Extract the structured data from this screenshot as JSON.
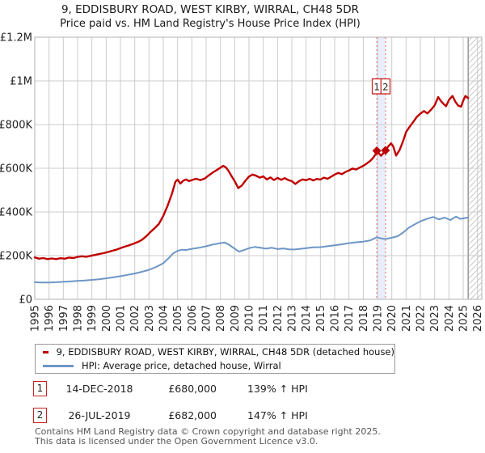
{
  "title": {
    "line1": "9, EDDISBURY ROAD, WEST KIRBY, WIRRAL, CH48 5DR",
    "line2": "Price paid vs. HM Land Registry's House Price Index (HPI)"
  },
  "colors": {
    "property_line": "#c00000",
    "hpi_line": "#6d96c6",
    "grid": "#cccccc",
    "plot_border": "#b0b0b0",
    "band": "#e8eefb",
    "event_line": "#f07878",
    "marker": "#c00000",
    "hatch": "#c8c8c8",
    "hatch_edge": "#999999",
    "annotation_border": "#cc2222",
    "text": "#222222",
    "footer_text": "#555555"
  },
  "chart_data": {
    "type": "line",
    "title": "9, EDDISBURY ROAD, WEST KIRBY, WIRRAL, CH48 5DR",
    "subtitle": "Price paid vs. HM Land Registry's House Price Index (HPI)",
    "grid": true,
    "legend_position": "bottom",
    "x_axis": {
      "min": 1995,
      "max": 2026.3,
      "tick_years": [
        1995,
        1996,
        1997,
        1998,
        1999,
        2000,
        2001,
        2002,
        2003,
        2004,
        2005,
        2006,
        2007,
        2008,
        2009,
        2010,
        2011,
        2012,
        2013,
        2014,
        2015,
        2016,
        2017,
        2018,
        2019,
        2020,
        2021,
        2022,
        2023,
        2024,
        2025,
        2026
      ]
    },
    "y_axis": {
      "min": 0,
      "max": 1200,
      "unit": "thousands of £",
      "ticks": [
        {
          "value": 0,
          "label": "£0"
        },
        {
          "value": 200,
          "label": "£200K"
        },
        {
          "value": 400,
          "label": "£400K"
        },
        {
          "value": 600,
          "label": "£600K"
        },
        {
          "value": 800,
          "label": "£800K"
        },
        {
          "value": 1000,
          "label": "£1M"
        },
        {
          "value": 1200,
          "label": "£1.2M"
        }
      ]
    },
    "future_hatch_start_year": 2025.35,
    "series": [
      {
        "name": "9, EDDISBURY ROAD, WEST KIRBY, WIRRAL, CH48 5DR (detached house)",
        "color_key": "property_line",
        "width": 2.4,
        "points": [
          [
            1995.0,
            192
          ],
          [
            1995.3,
            186
          ],
          [
            1995.6,
            189
          ],
          [
            1995.9,
            184
          ],
          [
            1996.2,
            187
          ],
          [
            1996.5,
            184
          ],
          [
            1996.8,
            188
          ],
          [
            1997.1,
            186
          ],
          [
            1997.4,
            191
          ],
          [
            1997.7,
            189
          ],
          [
            1998.0,
            194
          ],
          [
            1998.3,
            197
          ],
          [
            1998.6,
            195
          ],
          [
            1998.9,
            199
          ],
          [
            1999.2,
            203
          ],
          [
            1999.5,
            207
          ],
          [
            1999.8,
            211
          ],
          [
            2000.1,
            216
          ],
          [
            2000.4,
            222
          ],
          [
            2000.7,
            227
          ],
          [
            2001.0,
            234
          ],
          [
            2001.3,
            241
          ],
          [
            2001.6,
            247
          ],
          [
            2001.9,
            254
          ],
          [
            2002.2,
            262
          ],
          [
            2002.5,
            272
          ],
          [
            2002.8,
            288
          ],
          [
            2003.1,
            308
          ],
          [
            2003.4,
            326
          ],
          [
            2003.7,
            346
          ],
          [
            2004.0,
            382
          ],
          [
            2004.3,
            428
          ],
          [
            2004.6,
            482
          ],
          [
            2004.85,
            538
          ],
          [
            2005.0,
            548
          ],
          [
            2005.2,
            530
          ],
          [
            2005.4,
            543
          ],
          [
            2005.6,
            549
          ],
          [
            2005.8,
            541
          ],
          [
            2006.0,
            546
          ],
          [
            2006.3,
            552
          ],
          [
            2006.6,
            546
          ],
          [
            2006.9,
            553
          ],
          [
            2007.2,
            568
          ],
          [
            2007.5,
            582
          ],
          [
            2007.8,
            594
          ],
          [
            2008.0,
            603
          ],
          [
            2008.2,
            611
          ],
          [
            2008.4,
            603
          ],
          [
            2008.6,
            585
          ],
          [
            2008.8,
            562
          ],
          [
            2009.0,
            541
          ],
          [
            2009.25,
            509
          ],
          [
            2009.5,
            521
          ],
          [
            2009.75,
            543
          ],
          [
            2010.0,
            562
          ],
          [
            2010.25,
            571
          ],
          [
            2010.5,
            566
          ],
          [
            2010.75,
            557
          ],
          [
            2011.0,
            563
          ],
          [
            2011.25,
            549
          ],
          [
            2011.5,
            558
          ],
          [
            2011.75,
            546
          ],
          [
            2012.0,
            556
          ],
          [
            2012.25,
            547
          ],
          [
            2012.5,
            555
          ],
          [
            2012.75,
            546
          ],
          [
            2013.0,
            541
          ],
          [
            2013.25,
            528
          ],
          [
            2013.5,
            541
          ],
          [
            2013.75,
            549
          ],
          [
            2014.0,
            545
          ],
          [
            2014.25,
            552
          ],
          [
            2014.5,
            544
          ],
          [
            2014.75,
            551
          ],
          [
            2015.0,
            548
          ],
          [
            2015.25,
            557
          ],
          [
            2015.5,
            552
          ],
          [
            2015.75,
            561
          ],
          [
            2016.0,
            571
          ],
          [
            2016.25,
            579
          ],
          [
            2016.5,
            573
          ],
          [
            2016.75,
            583
          ],
          [
            2017.0,
            590
          ],
          [
            2017.25,
            599
          ],
          [
            2017.5,
            594
          ],
          [
            2017.75,
            603
          ],
          [
            2018.0,
            611
          ],
          [
            2018.25,
            622
          ],
          [
            2018.5,
            634
          ],
          [
            2018.7,
            648
          ],
          [
            2018.85,
            663
          ],
          [
            2018.95,
            680
          ],
          [
            2019.1,
            668
          ],
          [
            2019.25,
            657
          ],
          [
            2019.4,
            668
          ],
          [
            2019.56,
            682
          ],
          [
            2019.75,
            700
          ],
          [
            2019.95,
            714
          ],
          [
            2020.1,
            700
          ],
          [
            2020.3,
            658
          ],
          [
            2020.55,
            684
          ],
          [
            2020.8,
            726
          ],
          [
            2021.0,
            766
          ],
          [
            2021.25,
            790
          ],
          [
            2021.5,
            812
          ],
          [
            2021.75,
            835
          ],
          [
            2022.0,
            850
          ],
          [
            2022.25,
            862
          ],
          [
            2022.5,
            851
          ],
          [
            2022.75,
            868
          ],
          [
            2023.0,
            888
          ],
          [
            2023.25,
            926
          ],
          [
            2023.45,
            907
          ],
          [
            2023.65,
            893
          ],
          [
            2023.8,
            884
          ],
          [
            2024.0,
            913
          ],
          [
            2024.25,
            931
          ],
          [
            2024.45,
            905
          ],
          [
            2024.65,
            887
          ],
          [
            2024.85,
            882
          ],
          [
            2025.0,
            909
          ],
          [
            2025.15,
            931
          ],
          [
            2025.35,
            921
          ]
        ]
      },
      {
        "name": "HPI: Average price, detached house, Wirral",
        "color_key": "hpi_line",
        "width": 2,
        "points": [
          [
            1995.0,
            78
          ],
          [
            1995.5,
            77
          ],
          [
            1996.0,
            77
          ],
          [
            1996.5,
            78
          ],
          [
            1997.0,
            80
          ],
          [
            1997.5,
            82
          ],
          [
            1998.0,
            84
          ],
          [
            1998.5,
            86
          ],
          [
            1999.0,
            89
          ],
          [
            1999.5,
            92
          ],
          [
            2000.0,
            96
          ],
          [
            2000.5,
            101
          ],
          [
            2001.0,
            106
          ],
          [
            2001.5,
            112
          ],
          [
            2002.0,
            118
          ],
          [
            2002.5,
            126
          ],
          [
            2003.0,
            135
          ],
          [
            2003.5,
            148
          ],
          [
            2004.0,
            165
          ],
          [
            2004.4,
            190
          ],
          [
            2004.7,
            211
          ],
          [
            2005.0,
            222
          ],
          [
            2005.3,
            227
          ],
          [
            2005.6,
            226
          ],
          [
            2006.0,
            231
          ],
          [
            2006.5,
            236
          ],
          [
            2007.0,
            243
          ],
          [
            2007.5,
            251
          ],
          [
            2008.0,
            257
          ],
          [
            2008.3,
            260
          ],
          [
            2008.6,
            250
          ],
          [
            2009.0,
            232
          ],
          [
            2009.3,
            218
          ],
          [
            2009.6,
            224
          ],
          [
            2010.0,
            234
          ],
          [
            2010.4,
            240
          ],
          [
            2010.8,
            236
          ],
          [
            2011.2,
            232
          ],
          [
            2011.6,
            236
          ],
          [
            2012.0,
            230
          ],
          [
            2012.4,
            233
          ],
          [
            2012.8,
            229
          ],
          [
            2013.2,
            228
          ],
          [
            2013.6,
            231
          ],
          [
            2014.0,
            234
          ],
          [
            2014.5,
            238
          ],
          [
            2015.0,
            239
          ],
          [
            2015.5,
            243
          ],
          [
            2016.0,
            247
          ],
          [
            2016.5,
            252
          ],
          [
            2017.0,
            257
          ],
          [
            2017.5,
            261
          ],
          [
            2018.0,
            264
          ],
          [
            2018.5,
            270
          ],
          [
            2018.95,
            284
          ],
          [
            2019.3,
            278
          ],
          [
            2019.56,
            276
          ],
          [
            2020.0,
            282
          ],
          [
            2020.4,
            289
          ],
          [
            2020.8,
            306
          ],
          [
            2021.2,
            328
          ],
          [
            2021.6,
            343
          ],
          [
            2022.0,
            357
          ],
          [
            2022.4,
            367
          ],
          [
            2022.9,
            377
          ],
          [
            2023.3,
            366
          ],
          [
            2023.7,
            374
          ],
          [
            2024.1,
            363
          ],
          [
            2024.5,
            379
          ],
          [
            2024.8,
            368
          ],
          [
            2025.1,
            372
          ],
          [
            2025.35,
            375
          ]
        ]
      }
    ],
    "sale_markers": [
      {
        "label": "1",
        "year": 2018.95,
        "value": 680
      },
      {
        "label": "2",
        "year": 2019.56,
        "value": 682
      }
    ]
  },
  "legend": {
    "items": [
      {
        "label": "9, EDDISBURY ROAD, WEST KIRBY, WIRRAL, CH48 5DR (detached house)",
        "color_key": "property_line"
      },
      {
        "label": "HPI: Average price, detached house, Wirral",
        "color_key": "hpi_line"
      }
    ]
  },
  "transactions": [
    {
      "num": "1",
      "date": "14-DEC-2018",
      "price": "£680,000",
      "hpi_change": "139% ↑ HPI"
    },
    {
      "num": "2",
      "date": "26-JUL-2019",
      "price": "£682,000",
      "hpi_change": "147% ↑ HPI"
    }
  ],
  "footer": {
    "line1": "Contains HM Land Registry data © Crown copyright and database right 2025.",
    "line2": "This data is licensed under the Open Government Licence v3.0."
  }
}
